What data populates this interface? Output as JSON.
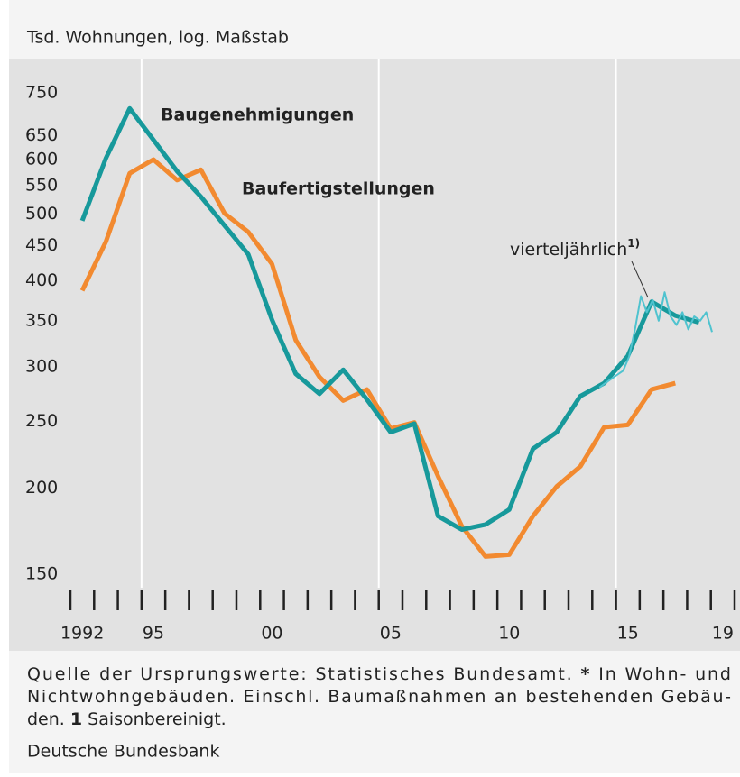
{
  "chart_data": {
    "type": "line",
    "title": "Tsd. Wohnungen, log. Maßstab",
    "log_y": true,
    "ylim": [
      145,
      780
    ],
    "yticks": [
      150,
      200,
      250,
      300,
      350,
      400,
      450,
      500,
      550,
      600,
      650,
      750
    ],
    "xlim": [
      1991.5,
      2019.5
    ],
    "xticks": [
      {
        "value": 1992,
        "label": "1992"
      },
      {
        "value": 1995,
        "label": "95"
      },
      {
        "value": 2000,
        "label": "00"
      },
      {
        "value": 2005,
        "label": "05"
      },
      {
        "value": 2010,
        "label": "10"
      },
      {
        "value": 2015,
        "label": "15"
      },
      {
        "value": 2019,
        "label": "19"
      }
    ],
    "xgrid": [
      1994.5,
      2004.5,
      2014.5
    ],
    "series": [
      {
        "name": "Baufertigstellungen",
        "color": "#f28a30",
        "width": 5,
        "x": [
          1992,
          1993,
          1994,
          1995,
          1996,
          1997,
          1998,
          1999,
          2000,
          2001,
          2002,
          2003,
          2004,
          2005,
          2006,
          2007,
          2008,
          2009,
          2010,
          2011,
          2012,
          2013,
          2014,
          2015,
          2016,
          2017
        ],
        "values": [
          387,
          456,
          573,
          600,
          560,
          580,
          501,
          471,
          423,
          328,
          290,
          268,
          278,
          244,
          249,
          208,
          176,
          159,
          160,
          182,
          201,
          215,
          245,
          247,
          278,
          284
        ]
      },
      {
        "name": "Baugenehmigungen",
        "color": "#17999b",
        "width": 5,
        "x": [
          1992,
          1993,
          1994,
          1995,
          1996,
          1997,
          1998,
          1999,
          2000,
          2001,
          2002,
          2003,
          2004,
          2005,
          2006,
          2007,
          2008,
          2009,
          2010,
          2011,
          2012,
          2013,
          2014,
          2015,
          2016,
          2017,
          2018
        ],
        "values": [
          489,
          603,
          712,
          641,
          577,
          530,
          481,
          437,
          351,
          293,
          274,
          297,
          269,
          241,
          248,
          182,
          174,
          177,
          186,
          228,
          241,
          272,
          284,
          311,
          373,
          356,
          348
        ]
      },
      {
        "name": "vierteljährlich",
        "note": "1)",
        "color": "#4fc3cf",
        "width": 2,
        "x": [
          2013.8,
          2014.05,
          2014.3,
          2014.55,
          2014.8,
          2015.05,
          2015.3,
          2015.55,
          2015.8,
          2016.05,
          2016.3,
          2016.55,
          2016.8,
          2017.05,
          2017.3,
          2017.55,
          2017.8,
          2018.05,
          2018.3,
          2018.55
        ],
        "values": [
          280,
          284,
          288,
          292,
          296,
          310,
          340,
          380,
          360,
          375,
          350,
          385,
          355,
          345,
          360,
          340,
          355,
          350,
          360,
          337
        ]
      }
    ],
    "footer": [
      [
        {
          "text": "Quelle der Ursprungswerte: Statistisches Bundesamt. "
        },
        {
          "text": "*",
          "bold": true
        },
        {
          "text": " In Wohn- und"
        }
      ],
      [
        {
          "text": "Nichtwohngebäuden. Einschl. Baumaßnahmen an bestehenden Gebäu-"
        }
      ],
      [
        {
          "text": "den. "
        },
        {
          "text": "1",
          "bold": true
        },
        {
          "text": " Saisonbereinigt."
        }
      ]
    ],
    "source": "Deutsche Bundesbank"
  }
}
